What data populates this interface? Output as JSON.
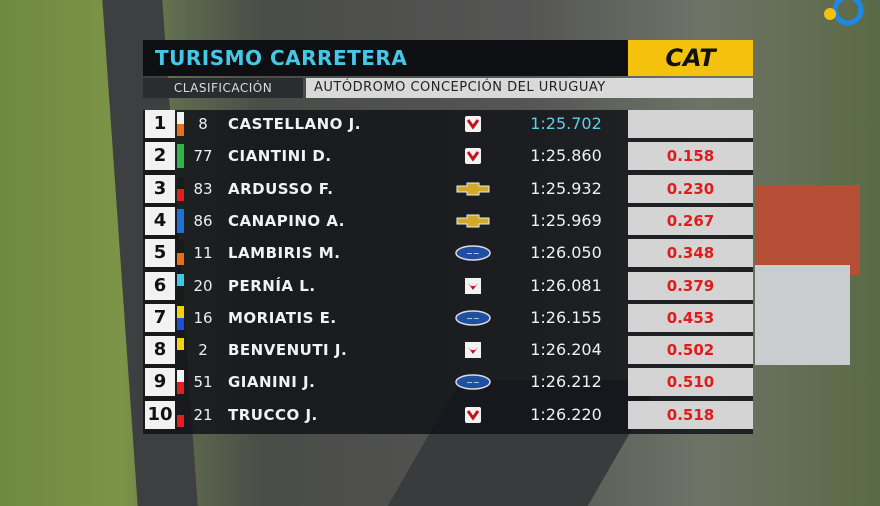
{
  "header": {
    "title": "TURISMO CARRETERA",
    "sponsor": "CAT",
    "session": "CLASIFICACIÓN",
    "venue": "AUTÓDROMO CONCEPCIÓN DEL URUGUAY"
  },
  "table": {
    "rows": [
      {
        "position": "1",
        "number": "8",
        "driver": "CASTELLANO J.",
        "time": "1:25.702"
      },
      {
        "position": "2",
        "number": "77",
        "driver": "CIANTINI D.",
        "time": "1:25.860",
        "gap": "0.158"
      },
      {
        "position": "3",
        "number": "83",
        "driver": "ARDUSSO F.",
        "time": "1:25.932",
        "gap": "0.230"
      },
      {
        "position": "4",
        "number": "86",
        "driver": "CANAPINO A.",
        "time": "1:25.969",
        "gap": "0.267"
      },
      {
        "position": "5",
        "number": "11",
        "driver": "LAMBIRIS M.",
        "time": "1:26.050",
        "gap": "0.348"
      },
      {
        "position": "6",
        "number": "20",
        "driver": "PERNÍA L.",
        "time": "1:26.081",
        "gap": "0.379"
      },
      {
        "position": "7",
        "number": "16",
        "driver": "MORIATIS E.",
        "time": "1:26.155",
        "gap": "0.453"
      },
      {
        "position": "8",
        "number": "2",
        "driver": "BENVENUTI J.",
        "time": "1:26.204",
        "gap": "0.502"
      },
      {
        "position": "9",
        "number": "51",
        "driver": "GIANINI J.",
        "time": "1:26.212",
        "gap": "0.510"
      },
      {
        "position": "10",
        "number": "21",
        "driver": "TRUCCO J.",
        "time": "1:26.220",
        "gap": "0.518"
      }
    ]
  }
}
